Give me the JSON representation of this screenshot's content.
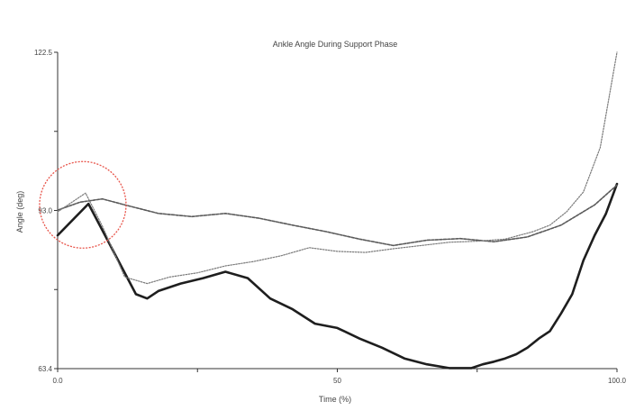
{
  "chart_data": {
    "type": "line",
    "title": "Ankle Angle During Support Phase",
    "xlabel": "Time (%)",
    "ylabel": "Angle (deg)",
    "xlim": [
      0,
      100
    ],
    "ylim": [
      63.4,
      122.5
    ],
    "y_tick_labels": [
      "122.5",
      "",
      "93.0",
      "",
      "63.4"
    ],
    "x_tick_labels": [
      "0.0",
      "",
      "50",
      "",
      "100.0"
    ],
    "grid": false,
    "series": [
      {
        "line_style": "solid",
        "color": "#1e1e1e",
        "x": [
          0,
          5.5,
          14,
          16,
          18,
          22,
          26,
          30,
          34,
          38,
          42,
          46,
          50,
          54,
          58,
          62,
          66,
          70,
          74,
          76,
          78,
          80,
          82,
          84,
          86,
          88,
          90,
          92,
          94,
          96,
          98,
          100
        ],
        "y": [
          88.3,
          94.2,
          77.3,
          76.5,
          77.9,
          79.3,
          80.3,
          81.5,
          80.3,
          76.5,
          74.5,
          71.8,
          71.0,
          69.0,
          67.3,
          65.3,
          64.2,
          63.5,
          63.5,
          64.2,
          64.7,
          65.3,
          66.1,
          67.3,
          69.0,
          70.4,
          73.7,
          77.3,
          83.6,
          88.3,
          92.3,
          97.9
        ]
      },
      {
        "line_style": "dashed",
        "color": "#5a5a5a",
        "x": [
          0,
          4,
          8,
          12,
          18,
          24,
          30,
          36,
          42,
          48,
          54,
          60,
          66,
          72,
          78,
          84,
          90,
          96,
          100
        ],
        "y": [
          93.0,
          94.5,
          95.1,
          94.0,
          92.4,
          91.8,
          92.4,
          91.5,
          90.2,
          89.0,
          87.6,
          86.4,
          87.4,
          87.7,
          87.1,
          88.0,
          90.2,
          94.0,
          97.7
        ]
      },
      {
        "line_style": "dotted",
        "color": "#7a7a7a",
        "x": [
          0,
          5,
          8,
          12,
          16,
          20,
          25,
          30,
          35,
          40,
          45,
          50,
          55,
          60,
          65,
          70,
          75,
          80,
          85,
          88,
          91,
          94,
          97,
          100
        ],
        "y": [
          92.7,
          96.2,
          90.0,
          80.5,
          79.3,
          80.5,
          81.3,
          82.6,
          83.4,
          84.5,
          86.0,
          85.3,
          85.1,
          85.8,
          86.4,
          87.0,
          87.2,
          87.6,
          89.0,
          90.2,
          92.7,
          96.4,
          104.7,
          122.5
        ]
      }
    ],
    "annotations": [
      {
        "type": "circle",
        "color": "#e8554b",
        "x": 4.5,
        "y": 94.0
      }
    ]
  }
}
